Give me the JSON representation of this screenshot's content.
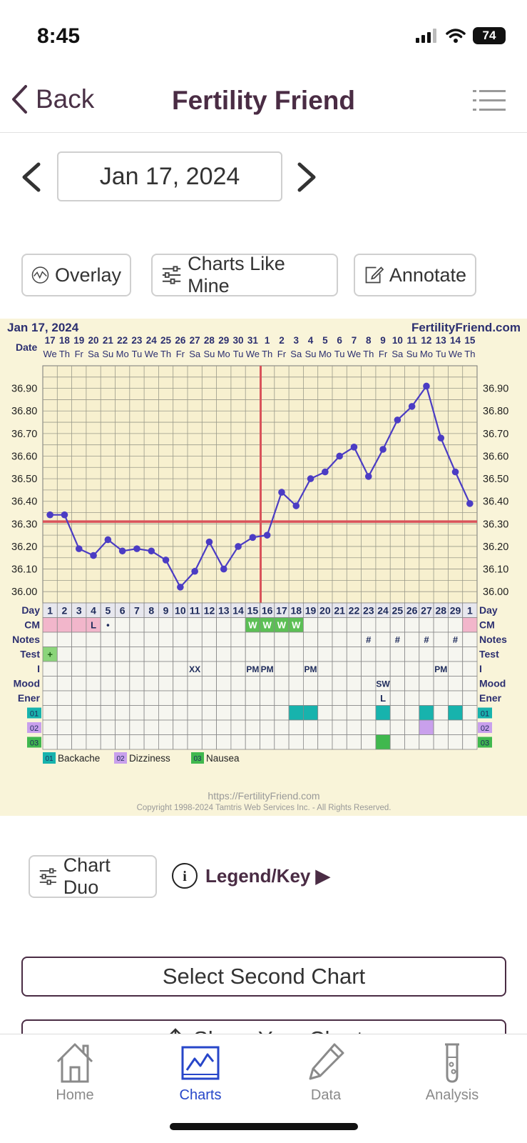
{
  "status_bar": {
    "time": "8:45",
    "battery": "74"
  },
  "nav": {
    "back_label": "Back",
    "title": "Fertility Friend"
  },
  "date_picker": {
    "value": "Jan 17, 2024"
  },
  "tools": {
    "overlay": "Overlay",
    "charts_like_mine": "Charts Like Mine",
    "annotate": "Annotate"
  },
  "chart_header": {
    "date": "Jan 17, 2024",
    "site": "FertilityFriend.com"
  },
  "chart_footer": {
    "url": "https://FertilityFriend.com",
    "copyright": "Copyright 1998-2024 Tamtris Web Services Inc. - All Rights Reserved."
  },
  "chart_data": {
    "type": "line",
    "date_label": "Date",
    "dates": [
      "17",
      "18",
      "19",
      "20",
      "21",
      "22",
      "23",
      "24",
      "25",
      "26",
      "27",
      "28",
      "29",
      "30",
      "31",
      "1",
      "2",
      "3",
      "4",
      "5",
      "6",
      "7",
      "8",
      "9",
      "10",
      "11",
      "12",
      "13",
      "14",
      "15"
    ],
    "weekdays": [
      "We",
      "Th",
      "Fr",
      "Sa",
      "Su",
      "Mo",
      "Tu",
      "We",
      "Th",
      "Fr",
      "Sa",
      "Su",
      "Mo",
      "Tu",
      "We",
      "Th",
      "Fr",
      "Sa",
      "Su",
      "Mo",
      "Tu",
      "We",
      "Th",
      "Fr",
      "Sa",
      "Su",
      "Mo",
      "Tu",
      "We",
      "Th"
    ],
    "day_label": "Day",
    "cycle_days": [
      "1",
      "2",
      "3",
      "4",
      "5",
      "6",
      "7",
      "8",
      "9",
      "10",
      "11",
      "12",
      "13",
      "14",
      "15",
      "16",
      "17",
      "18",
      "19",
      "20",
      "21",
      "22",
      "23",
      "24",
      "25",
      "26",
      "27",
      "28",
      "29",
      "1"
    ],
    "y_ticks": [
      "36.90",
      "36.80",
      "36.70",
      "36.60",
      "36.50",
      "36.40",
      "36.30",
      "36.20",
      "36.10",
      "36.00"
    ],
    "ylim": [
      35.95,
      37.0
    ],
    "temperatures": [
      36.34,
      36.34,
      36.19,
      36.16,
      36.23,
      36.18,
      36.19,
      36.18,
      36.14,
      36.02,
      36.09,
      36.22,
      36.1,
      36.2,
      36.24,
      36.25,
      36.44,
      36.38,
      36.5,
      36.53,
      36.6,
      36.64,
      36.51,
      36.63,
      36.76,
      36.82,
      36.91,
      36.68,
      36.53,
      36.39
    ],
    "coverline": 36.31,
    "ovulation_day_index": 15,
    "series_color": "#4b3cc4",
    "coverline_color": "#d9535a"
  },
  "obs_rows": [
    {
      "label": "CM",
      "cells": {
        "0": "",
        "1": "",
        "2": "",
        "3": "L",
        "4": "•",
        "14": "W",
        "15": "W",
        "16": "W",
        "17": "W",
        "29": ""
      }
    },
    {
      "label": "Notes",
      "cells": {
        "22": "#",
        "24": "#",
        "26": "#",
        "28": "#"
      }
    },
    {
      "label": "Test",
      "cells": {
        "0": "+"
      }
    },
    {
      "label": "I",
      "cells": {
        "10": "XX",
        "14": "PM",
        "15": "PM",
        "18": "PM",
        "27": "PM"
      }
    },
    {
      "label": "Mood",
      "cells": {
        "23": "SW"
      }
    },
    {
      "label": "Ener",
      "cells": {
        "23": "L"
      }
    },
    {
      "label": "01",
      "cells": {}
    },
    {
      "label": "02",
      "cells": {}
    },
    {
      "label": "03",
      "cells": {}
    }
  ],
  "symptom_legend": [
    {
      "code": "01",
      "name": "Backache",
      "color": "#17b3ad"
    },
    {
      "code": "02",
      "name": "Dizziness",
      "color": "#c9a0ec"
    },
    {
      "code": "03",
      "name": "Nausea",
      "color": "#40b84e"
    }
  ],
  "duo": {
    "chart_duo": "Chart Duo",
    "legend_key": "Legend/Key ▶"
  },
  "actions": {
    "select_second": "Select Second Chart",
    "share_chart": "Share Your Chart"
  },
  "tabs": [
    {
      "label": "Home",
      "icon": "house-icon"
    },
    {
      "label": "Charts",
      "icon": "chart-line-icon"
    },
    {
      "label": "Data",
      "icon": "pencil-icon"
    },
    {
      "label": "Analysis",
      "icon": "test-tube-icon"
    }
  ]
}
